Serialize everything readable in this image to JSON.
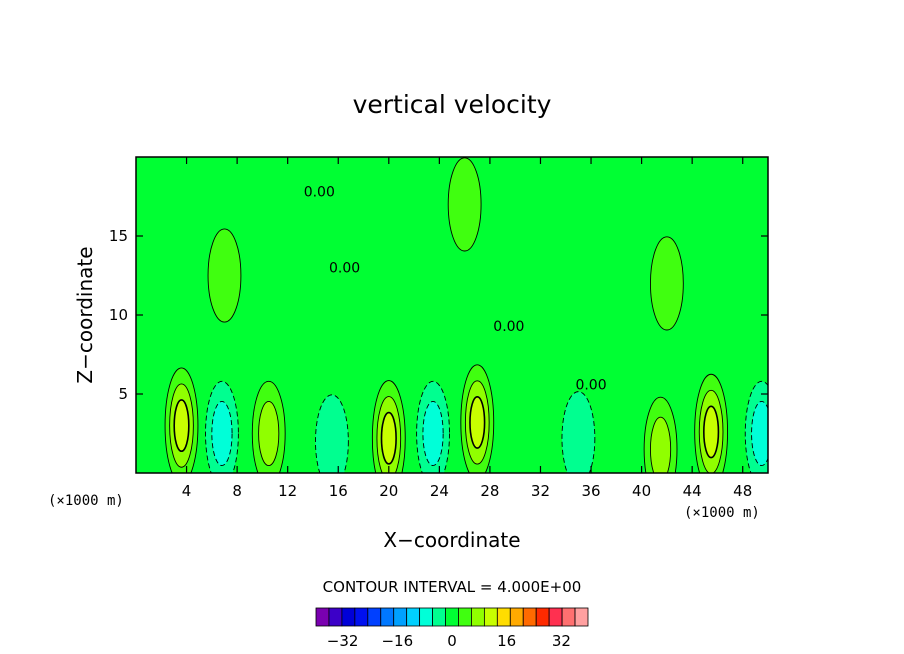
{
  "chart_data": {
    "type": "contour",
    "title": "vertical velocity",
    "xlabel": "X−coordinate",
    "ylabel": "Z−coordinate",
    "x_unit": "(×1000 m)",
    "z_unit": "(×1000 m)",
    "xlim": [
      0,
      50
    ],
    "ylim": [
      0,
      20
    ],
    "x_ticks": [
      4,
      8,
      12,
      16,
      20,
      24,
      28,
      32,
      36,
      40,
      44,
      48
    ],
    "x_tick_labels": [
      "4",
      "8",
      "12",
      "16",
      "20",
      "24",
      "28",
      "32",
      "36",
      "40",
      "44",
      "48"
    ],
    "y_ticks": [
      5,
      10,
      15
    ],
    "y_tick_labels": [
      "5",
      "10",
      "15"
    ],
    "background_level": 0,
    "background_color": "#00ff33",
    "contour_interval_text": "CONTOUR INTERVAL = 4.000E+00",
    "contour_labels": [
      {
        "text": "0.00",
        "x": 14.5,
        "z": 17.5
      },
      {
        "text": "0.00",
        "x": 16.5,
        "z": 12.7
      },
      {
        "text": "0.00",
        "x": 29.5,
        "z": 9.0
      },
      {
        "text": "0.00",
        "x": 36.0,
        "z": 5.3
      }
    ],
    "features": [
      {
        "x": 3.6,
        "z": 3.0,
        "level": 12
      },
      {
        "x": 6.8,
        "z": 2.5,
        "level": -8
      },
      {
        "x": 10.5,
        "z": 2.5,
        "level": 8
      },
      {
        "x": 15.5,
        "z": 2.0,
        "level": -4
      },
      {
        "x": 20.0,
        "z": 2.2,
        "level": 12
      },
      {
        "x": 23.5,
        "z": 2.5,
        "level": -8
      },
      {
        "x": 27.0,
        "z": 3.2,
        "level": 12
      },
      {
        "x": 35.0,
        "z": 2.2,
        "level": -4
      },
      {
        "x": 41.5,
        "z": 1.5,
        "level": 8
      },
      {
        "x": 45.5,
        "z": 2.6,
        "level": 12
      },
      {
        "x": 49.5,
        "z": 2.5,
        "level": -8
      },
      {
        "x": 7.0,
        "z": 12.5,
        "level": 4
      },
      {
        "x": 26.0,
        "z": 17.0,
        "level": 4
      },
      {
        "x": 42.0,
        "z": 12.0,
        "level": 4
      }
    ],
    "colorbar": {
      "levels": [
        -36,
        -32,
        -28,
        -24,
        -20,
        -16,
        -12,
        -8,
        -4,
        0,
        4,
        8,
        12,
        16,
        20,
        24,
        28,
        32,
        36
      ],
      "colors": [
        "#7a00b0",
        "#3c00c8",
        "#0000d8",
        "#0010f0",
        "#0040ff",
        "#0078ff",
        "#00a0ff",
        "#00d0ff",
        "#00ffd8",
        "#00ff90",
        "#00ff33",
        "#40ff10",
        "#90ff00",
        "#c8ff00",
        "#ffdd00",
        "#ffaa00",
        "#ff6a00",
        "#ff2a00",
        "#ff3050",
        "#ff7070",
        "#ffa0a0"
      ],
      "tick_values": [
        -32,
        -16,
        0,
        16,
        32
      ],
      "tick_labels": [
        "−32",
        "−16",
        "0",
        "16",
        "32"
      ]
    }
  }
}
